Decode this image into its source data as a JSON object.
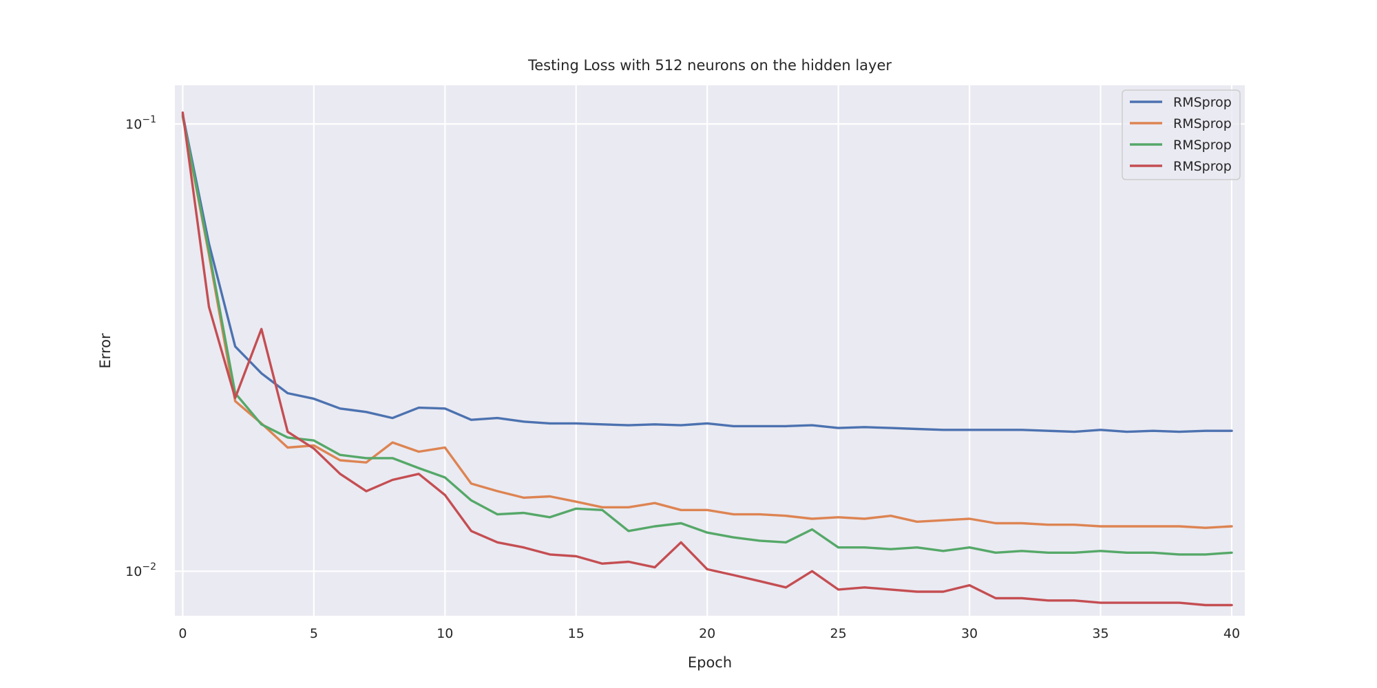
{
  "chart_data": {
    "type": "line",
    "title": "Testing Loss with 512 neurons on the hidden layer",
    "xlabel": "Epoch",
    "ylabel": "Error",
    "xlim": [
      -0.3,
      40.5
    ],
    "ylim": [
      0.00795,
      0.122
    ],
    "yscale": "log",
    "xticks": [
      0,
      5,
      10,
      15,
      20,
      25,
      30,
      35,
      40
    ],
    "xtick_labels": [
      "0",
      "5",
      "10",
      "15",
      "20",
      "25",
      "30",
      "35",
      "40"
    ],
    "yticks": [
      0.1,
      0.01
    ],
    "ytick_labels": [
      {
        "base": "10",
        "exp": "−1"
      },
      {
        "base": "10",
        "exp": "−2"
      }
    ],
    "grid": true,
    "legend_position": "top-right",
    "background": "#eaeaf2",
    "x": [
      0,
      1,
      2,
      3,
      4,
      5,
      6,
      7,
      8,
      9,
      10,
      11,
      12,
      13,
      14,
      15,
      16,
      17,
      18,
      19,
      20,
      21,
      22,
      23,
      24,
      25,
      26,
      27,
      28,
      29,
      30,
      31,
      32,
      33,
      34,
      35,
      36,
      37,
      38,
      39,
      40
    ],
    "series": [
      {
        "name": "RMSprop",
        "color": "#4c72b0",
        "values": [
          0.105,
          0.054,
          0.0318,
          0.0277,
          0.025,
          0.0243,
          0.0231,
          0.0227,
          0.022,
          0.0232,
          0.0231,
          0.0218,
          0.022,
          0.0216,
          0.0214,
          0.0214,
          0.0213,
          0.0212,
          0.0213,
          0.0212,
          0.0214,
          0.0211,
          0.0211,
          0.0211,
          0.0212,
          0.0209,
          0.021,
          0.0209,
          0.0208,
          0.0207,
          0.0207,
          0.0207,
          0.0207,
          0.0206,
          0.0205,
          0.0207,
          0.0205,
          0.0206,
          0.0205,
          0.0206,
          0.0206
        ]
      },
      {
        "name": "RMSprop",
        "color": "#dd8452",
        "values": [
          0.104,
          0.051,
          0.024,
          0.0214,
          0.0189,
          0.0191,
          0.0177,
          0.0175,
          0.0194,
          0.0185,
          0.0189,
          0.0157,
          0.0151,
          0.0146,
          0.0147,
          0.0143,
          0.0139,
          0.0139,
          0.0142,
          0.0137,
          0.0137,
          0.0134,
          0.0134,
          0.0133,
          0.0131,
          0.0132,
          0.0131,
          0.0133,
          0.0129,
          0.013,
          0.0131,
          0.0128,
          0.0128,
          0.0127,
          0.0127,
          0.0126,
          0.0126,
          0.0126,
          0.0126,
          0.0125,
          0.0126
        ]
      },
      {
        "name": "RMSprop",
        "color": "#55a868",
        "values": [
          0.104,
          0.052,
          0.025,
          0.0213,
          0.0199,
          0.0196,
          0.0182,
          0.0179,
          0.0179,
          0.017,
          0.0162,
          0.0144,
          0.0134,
          0.0135,
          0.0132,
          0.0138,
          0.0137,
          0.0123,
          0.0126,
          0.0128,
          0.0122,
          0.0119,
          0.0117,
          0.0116,
          0.0124,
          0.0113,
          0.0113,
          0.0112,
          0.0113,
          0.0111,
          0.0113,
          0.011,
          0.0111,
          0.011,
          0.011,
          0.0111,
          0.011,
          0.011,
          0.0109,
          0.0109,
          0.011
        ]
      },
      {
        "name": "RMSprop",
        "color": "#c44e52",
        "values": [
          0.106,
          0.039,
          0.0244,
          0.0348,
          0.0205,
          0.0188,
          0.0165,
          0.0151,
          0.016,
          0.0165,
          0.0148,
          0.0123,
          0.0116,
          0.0113,
          0.0109,
          0.0108,
          0.0104,
          0.0105,
          0.0102,
          0.0116,
          0.0101,
          0.0098,
          0.0095,
          0.0092,
          0.01,
          0.0091,
          0.0092,
          0.0091,
          0.009,
          0.009,
          0.0093,
          0.0087,
          0.0087,
          0.0086,
          0.0086,
          0.0085,
          0.0085,
          0.0085,
          0.0085,
          0.0084,
          0.0084
        ]
      }
    ]
  }
}
